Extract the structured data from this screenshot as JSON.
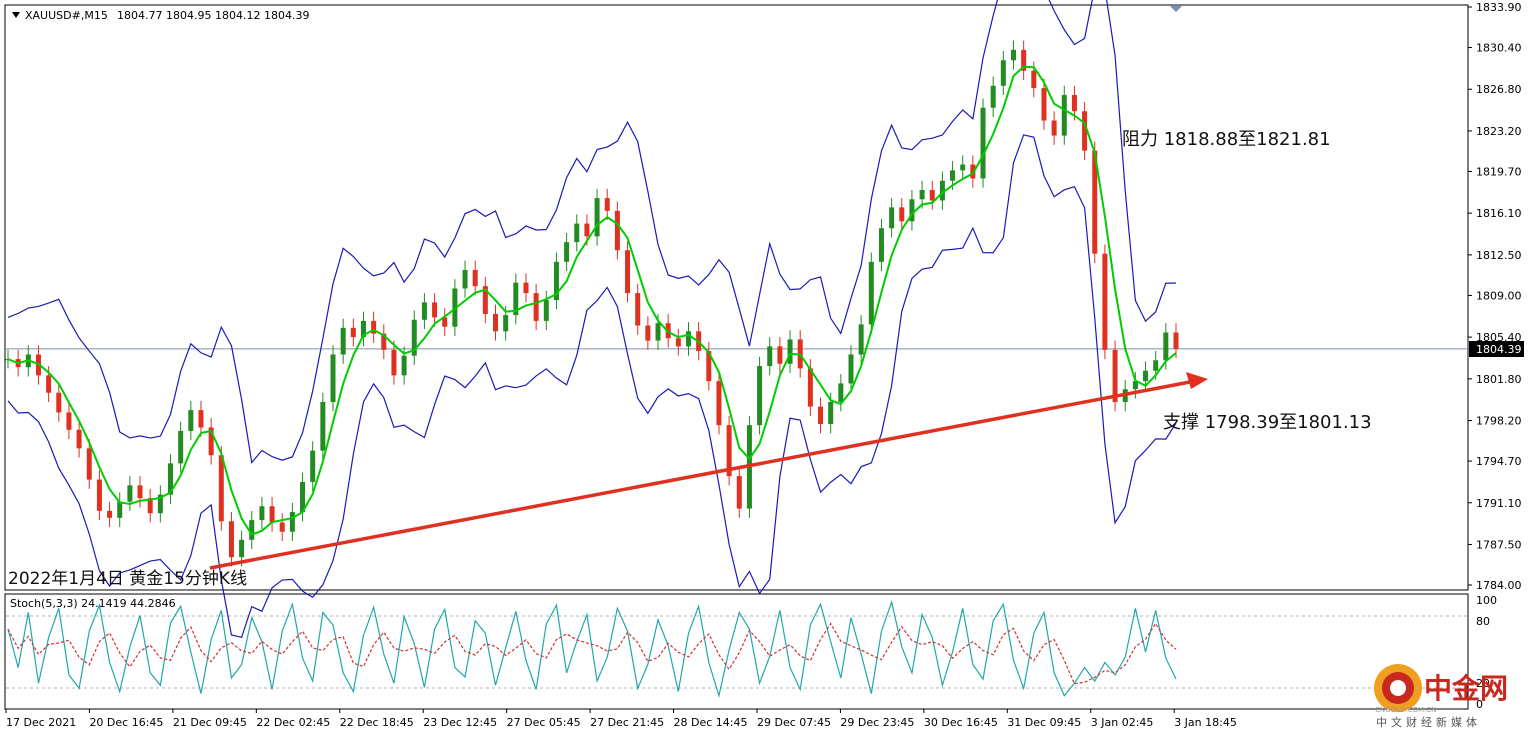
{
  "chart_data": {
    "type": "line",
    "header": {
      "symbol_timeframe": "XAUUSD#,M15",
      "ohlc": "1804.77 1804.95 1804.12 1804.39"
    },
    "price_axis": {
      "ticks": [
        "1833.90",
        "1830.40",
        "1826.80",
        "1823.20",
        "1819.70",
        "1816.10",
        "1812.50",
        "1809.00",
        "1805.40",
        "1801.80",
        "1798.20",
        "1794.70",
        "1791.10",
        "1787.50",
        "1784.00"
      ],
      "ylim": [
        1784.0,
        1833.9
      ],
      "current_price": "1804.39"
    },
    "time_axis": {
      "ticks": [
        "17 Dec 2021",
        "20 Dec 16:45",
        "21 Dec 09:45",
        "22 Dec 02:45",
        "22 Dec 18:45",
        "23 Dec 12:45",
        "27 Dec 05:45",
        "27 Dec 21:45",
        "28 Dec 14:45",
        "29 Dec 07:45",
        "29 Dec 23:45",
        "30 Dec 16:45",
        "31 Dec 09:45",
        "3 Jan 02:45",
        "3 Jan 18:45"
      ]
    },
    "price_series": {
      "name": "XAUUSD#",
      "values": [
        1803.5,
        1802.8,
        1803.9,
        1802.1,
        1800.6,
        1798.9,
        1797.4,
        1795.8,
        1793.1,
        1790.4,
        1789.8,
        1791.2,
        1792.6,
        1791.5,
        1790.2,
        1791.8,
        1794.5,
        1797.3,
        1799.1,
        1797.6,
        1795.2,
        1789.5,
        1786.4,
        1787.9,
        1789.6,
        1790.8,
        1789.4,
        1788.6,
        1790.3,
        1792.9,
        1795.6,
        1799.8,
        1803.9,
        1806.2,
        1805.4,
        1806.8,
        1805.7,
        1804.3,
        1802.1,
        1803.8,
        1806.9,
        1808.4,
        1807.1,
        1806.3,
        1809.6,
        1811.2,
        1809.8,
        1807.4,
        1805.9,
        1807.3,
        1810.1,
        1809.2,
        1806.8,
        1808.6,
        1811.9,
        1813.6,
        1815.2,
        1814.1,
        1817.4,
        1816.3,
        1812.9,
        1809.2,
        1806.4,
        1805.1,
        1806.6,
        1805.3,
        1804.6,
        1805.9,
        1804.2,
        1801.6,
        1797.8,
        1793.4,
        1790.6,
        1797.8,
        1802.9,
        1804.6,
        1803.1,
        1805.2,
        1802.7,
        1799.4,
        1797.9,
        1799.8,
        1801.4,
        1803.9,
        1806.5,
        1811.9,
        1814.8,
        1816.6,
        1815.4,
        1817.3,
        1818.1,
        1817.2,
        1818.9,
        1819.8,
        1820.3,
        1819.1,
        1825.2,
        1827.1,
        1829.3,
        1830.2,
        1828.4,
        1826.9,
        1824.1,
        1822.8,
        1826.3,
        1824.9,
        1821.5,
        1812.6,
        1804.3,
        1799.8,
        1800.9,
        1801.6,
        1802.5,
        1803.4,
        1805.8,
        1804.39
      ]
    },
    "stochastic": {
      "label": "Stoch(5,3,3) 24.1419 44.2846",
      "levels": [
        "100",
        "80",
        "20",
        "0"
      ],
      "ylim": [
        0,
        100
      ],
      "main_values": [
        72,
        35,
        88,
        20,
        64,
        92,
        28,
        15,
        70,
        95,
        40,
        12,
        55,
        85,
        30,
        18,
        78,
        94,
        50,
        10,
        62,
        90,
        25,
        38,
        83,
        60,
        14,
        70,
        96,
        44,
        22,
        88,
        76,
        30,
        12,
        66,
        93,
        48,
        20,
        84,
        58,
        16,
        72,
        91,
        35,
        26,
        80,
        68,
        18,
        54,
        89,
        42,
        14,
        77,
        95,
        30,
        60,
        86,
        22,
        45,
        92,
        70,
        15,
        38,
        81,
        56,
        12,
        68,
        94,
        40,
        8,
        52,
        88,
        72,
        20,
        46,
        90,
        35,
        14,
        76,
        96,
        60,
        25,
        83,
        48,
        10,
        70,
        98,
        55,
        30,
        86,
        64,
        18,
        50,
        92,
        38,
        24,
        80,
        96,
        42,
        15,
        68,
        88,
        30,
        8,
        20,
        35,
        22,
        40,
        28,
        45,
        92,
        50,
        90,
        44,
        24
      ]
    },
    "annotations": {
      "resistance": "阻力 1818.88至1821.81",
      "support": "支撑 1798.39至1801.13",
      "date_note": "2022年1月4日 黄金15分钟K线"
    },
    "colors": {
      "bollinger": "#1a1ab8",
      "ma": "#00cc00",
      "candle_bull": "#228b22",
      "candle_bear": "#e03020",
      "trend": "#e03020",
      "stoch_main": "#20a8a8",
      "stoch_signal": "#d03030",
      "current_line": "#8090a8"
    }
  },
  "watermark": {
    "brand": "中金网",
    "tagline": "中文财经新媒体",
    "url": "CNGOLD.COM.CN"
  }
}
